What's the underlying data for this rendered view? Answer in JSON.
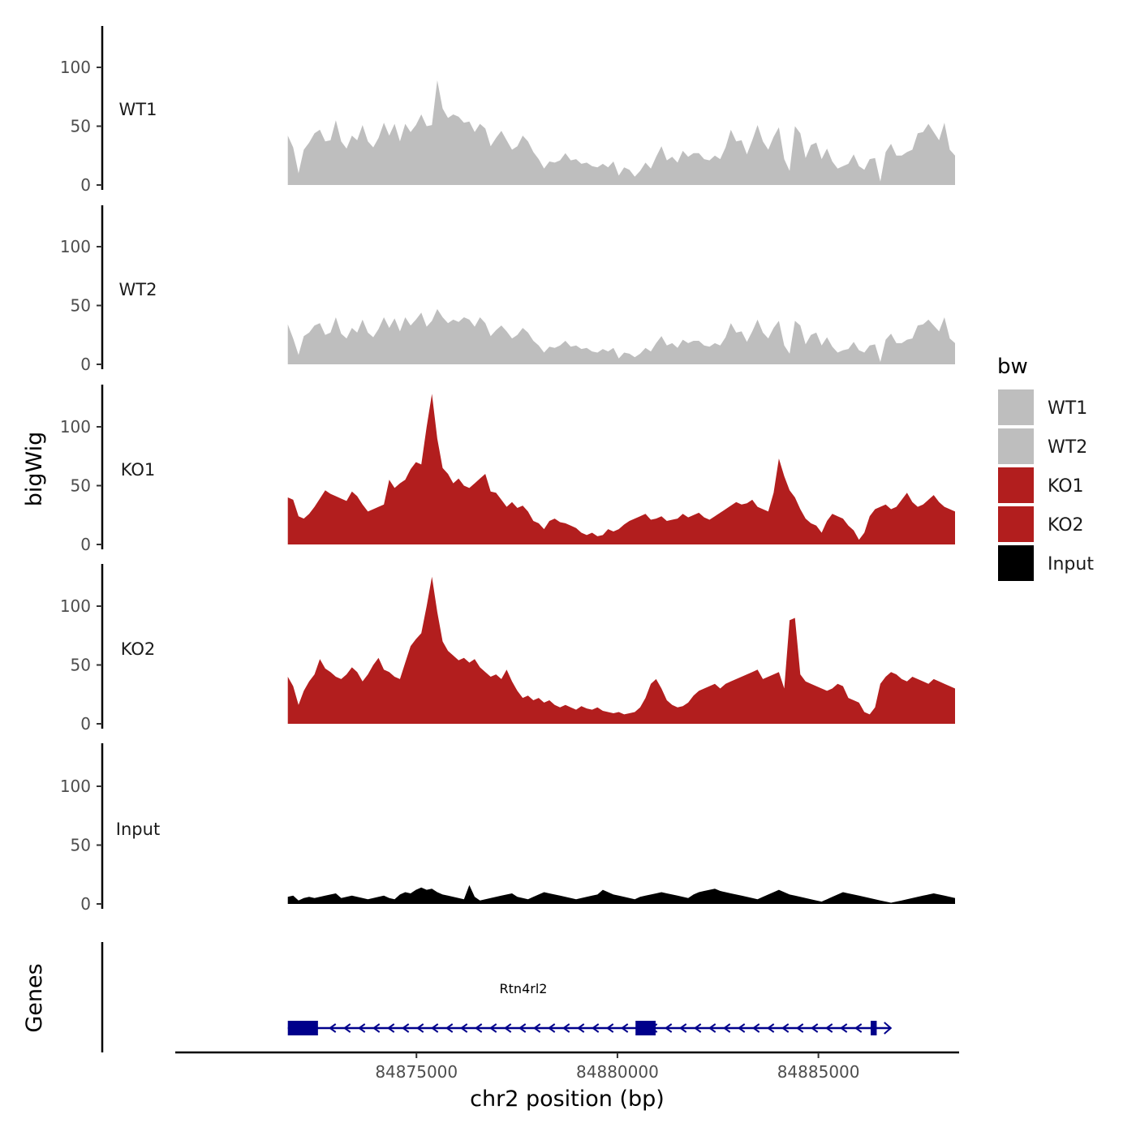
{
  "chart_data": {
    "type": "area",
    "title": "",
    "xlabel": "chr2 position (bp)",
    "ylabel": "bigWig",
    "gene_panel_label": "Genes",
    "xlim": [
      84869000,
      84888500
    ],
    "x_ticks": [
      84875000,
      84880000,
      84885000
    ],
    "x_tick_labels": [
      "84875000",
      "84880000",
      "84885000"
    ],
    "ylim": [
      0,
      135
    ],
    "y_ticks": [
      0,
      50,
      100
    ],
    "y_tick_labels": [
      "0",
      "50",
      "100"
    ],
    "data_range": [
      84871800,
      84888400
    ],
    "legend": {
      "title": "bw",
      "placement": "right",
      "entries": [
        {
          "label": "WT1",
          "color": "#bebebe"
        },
        {
          "label": "WT2",
          "color": "#bebebe"
        },
        {
          "label": "KO1",
          "color": "#b21e1e"
        },
        {
          "label": "KO2",
          "color": "#b21e1e"
        },
        {
          "label": "Input",
          "color": "#000000"
        }
      ]
    },
    "series": [
      {
        "name": "WT1",
        "color": "#bebebe",
        "values": [
          42,
          32,
          10,
          30,
          36,
          44,
          47,
          37,
          38,
          55,
          37,
          31,
          42,
          38,
          51,
          37,
          32,
          40,
          53,
          42,
          52,
          37,
          52,
          45,
          51,
          60,
          50,
          51,
          89,
          65,
          57,
          60,
          58,
          53,
          54,
          45,
          52,
          48,
          33,
          40,
          46,
          38,
          30,
          33,
          42,
          37,
          28,
          22,
          14,
          20,
          19,
          21,
          27,
          21,
          22,
          18,
          19,
          16,
          15,
          18,
          15,
          20,
          8,
          15,
          13,
          7,
          12,
          19,
          14,
          24,
          33,
          21,
          24,
          19,
          29,
          24,
          27,
          27,
          22,
          21,
          25,
          22,
          32,
          47,
          37,
          38,
          26,
          38,
          51,
          37,
          30,
          41,
          49,
          22,
          12,
          50,
          44,
          23,
          34,
          36,
          22,
          31,
          20,
          14,
          16,
          18,
          26,
          16,
          13,
          22,
          23,
          3,
          28,
          35,
          25,
          25,
          28,
          30,
          44,
          45,
          52,
          45,
          38,
          53,
          30,
          25
        ]
      },
      {
        "name": "WT2",
        "color": "#bebebe",
        "values": [
          34,
          22,
          8,
          24,
          27,
          33,
          35,
          25,
          27,
          40,
          26,
          22,
          31,
          27,
          38,
          27,
          23,
          30,
          40,
          31,
          39,
          28,
          40,
          33,
          38,
          44,
          32,
          37,
          47,
          40,
          35,
          38,
          36,
          40,
          38,
          32,
          40,
          35,
          24,
          29,
          33,
          28,
          22,
          25,
          31,
          27,
          20,
          16,
          10,
          15,
          14,
          16,
          20,
          15,
          16,
          13,
          14,
          11,
          10,
          13,
          11,
          14,
          5,
          10,
          9,
          6,
          9,
          14,
          11,
          18,
          24,
          16,
          18,
          14,
          21,
          18,
          20,
          20,
          16,
          15,
          18,
          16,
          23,
          35,
          27,
          28,
          19,
          28,
          38,
          27,
          22,
          31,
          37,
          16,
          9,
          37,
          33,
          17,
          25,
          27,
          16,
          23,
          15,
          10,
          12,
          13,
          19,
          12,
          10,
          16,
          17,
          2,
          21,
          26,
          18,
          18,
          21,
          22,
          33,
          34,
          38,
          33,
          28,
          40,
          22,
          18
        ]
      },
      {
        "name": "KO1",
        "color": "#b21e1e",
        "values": [
          40,
          38,
          24,
          22,
          26,
          32,
          39,
          46,
          43,
          41,
          39,
          37,
          45,
          41,
          34,
          28,
          30,
          32,
          34,
          55,
          48,
          52,
          55,
          64,
          70,
          68,
          100,
          128,
          90,
          65,
          60,
          52,
          56,
          50,
          48,
          52,
          56,
          60,
          45,
          44,
          38,
          32,
          36,
          31,
          33,
          28,
          20,
          18,
          13,
          20,
          22,
          19,
          18,
          16,
          14,
          10,
          8,
          10,
          7,
          8,
          13,
          11,
          13,
          17,
          20,
          22,
          24,
          26,
          21,
          22,
          24,
          20,
          21,
          22,
          26,
          23,
          25,
          27,
          23,
          21,
          24,
          27,
          30,
          33,
          36,
          34,
          35,
          38,
          32,
          30,
          28,
          44,
          73,
          58,
          46,
          40,
          30,
          22,
          18,
          16,
          10,
          20,
          26,
          24,
          22,
          16,
          12,
          4,
          10,
          24,
          30,
          32,
          34,
          30,
          32,
          38,
          44,
          36,
          32,
          34,
          38,
          42,
          36,
          32,
          30,
          28
        ]
      },
      {
        "name": "KO2",
        "color": "#b21e1e",
        "values": [
          40,
          32,
          16,
          28,
          36,
          42,
          55,
          47,
          44,
          40,
          38,
          42,
          48,
          44,
          36,
          42,
          50,
          56,
          46,
          44,
          40,
          38,
          52,
          66,
          72,
          77,
          100,
          125,
          95,
          70,
          62,
          58,
          54,
          56,
          52,
          55,
          48,
          44,
          40,
          42,
          38,
          46,
          36,
          28,
          22,
          24,
          20,
          22,
          18,
          20,
          16,
          14,
          16,
          14,
          12,
          15,
          13,
          12,
          14,
          11,
          10,
          9,
          10,
          8,
          9,
          10,
          14,
          22,
          34,
          38,
          30,
          20,
          16,
          14,
          15,
          18,
          24,
          28,
          30,
          32,
          34,
          30,
          34,
          36,
          38,
          40,
          42,
          44,
          46,
          38,
          40,
          42,
          44,
          30,
          88,
          90,
          42,
          36,
          34,
          32,
          30,
          28,
          30,
          34,
          32,
          22,
          20,
          18,
          10,
          8,
          14,
          34,
          40,
          44,
          42,
          38,
          36,
          40,
          38,
          36,
          34,
          38,
          36,
          34,
          32,
          30
        ]
      },
      {
        "name": "Input",
        "color": "#000000",
        "values": [
          6,
          7,
          3,
          5,
          6,
          5,
          6,
          7,
          8,
          9,
          5,
          6,
          7,
          6,
          5,
          4,
          5,
          6,
          7,
          5,
          4,
          8,
          10,
          9,
          12,
          14,
          12,
          13,
          10,
          8,
          7,
          6,
          5,
          4,
          16,
          6,
          3,
          4,
          5,
          6,
          7,
          8,
          9,
          6,
          5,
          4,
          6,
          8,
          10,
          9,
          8,
          7,
          6,
          5,
          4,
          5,
          6,
          7,
          8,
          12,
          10,
          8,
          7,
          6,
          5,
          4,
          6,
          7,
          8,
          9,
          10,
          9,
          8,
          7,
          6,
          5,
          8,
          10,
          11,
          12,
          13,
          11,
          10,
          9,
          8,
          7,
          6,
          5,
          4,
          6,
          8,
          10,
          12,
          10,
          8,
          7,
          6,
          5,
          4,
          3,
          2,
          4,
          6,
          8,
          10,
          9,
          8,
          7,
          6,
          5,
          4,
          3,
          2,
          1,
          2,
          3,
          4,
          5,
          6,
          7,
          8,
          9,
          8,
          7,
          6,
          5
        ]
      }
    ],
    "gene": {
      "name": "Rtn4rl2",
      "strand": "-",
      "color": "#00008b",
      "start": 84871800,
      "end": 84886800,
      "exons": [
        {
          "start": 84871800,
          "end": 84872550
        },
        {
          "start": 84880450,
          "end": 84880950
        },
        {
          "start": 84886300,
          "end": 84886450
        }
      ]
    }
  }
}
